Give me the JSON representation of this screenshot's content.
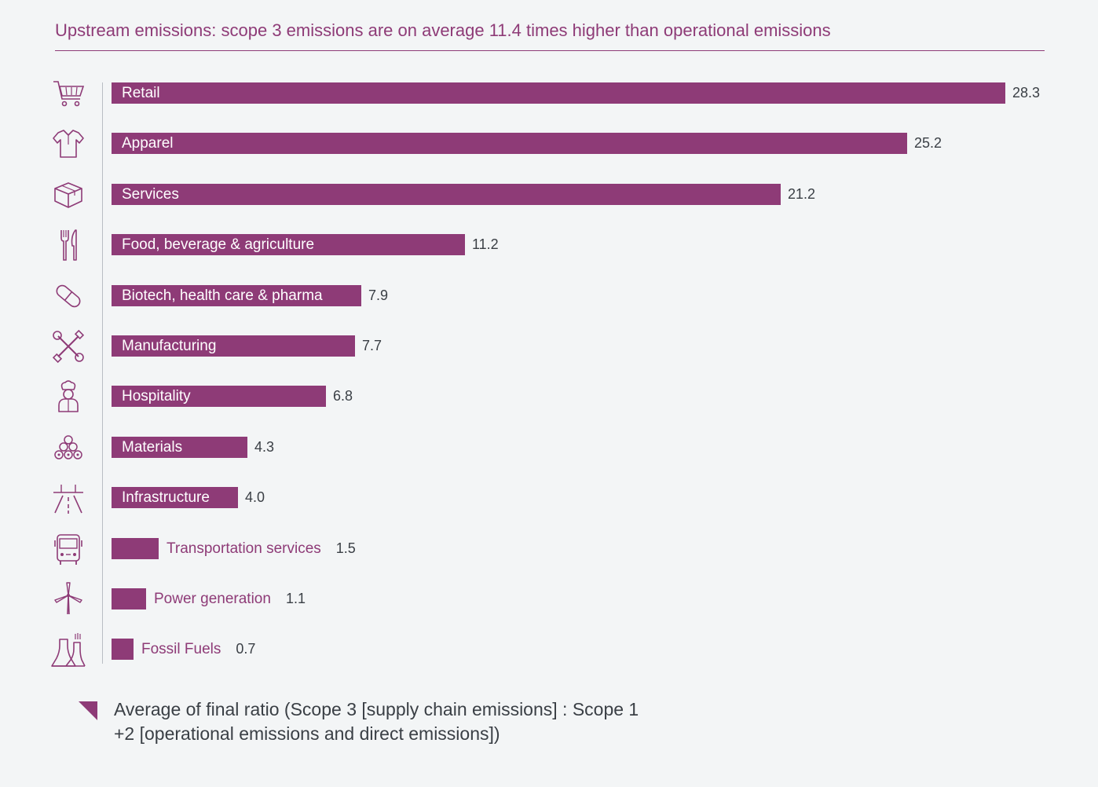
{
  "title": "Upstream emissions: scope 3 emissions are on average 11.4 times higher than operational emissions",
  "colors": {
    "bar": "#8e3b77",
    "title": "#8e3b77",
    "value_text": "#3a3f45",
    "background": "#f3f5f6"
  },
  "legend": {
    "text": "Average of final ratio (Scope 3 [supply chain emissions] : Scope 1 +2 [operational emissions and direct emissions])"
  },
  "chart_data": {
    "type": "bar",
    "orientation": "horizontal",
    "categories": [
      "Retail",
      "Apparel",
      "Services",
      "Food, beverage & agriculture",
      "Biotech, health care & pharma",
      "Manufacturing",
      "Hospitality",
      "Materials",
      "Infrastructure",
      "Transportation services",
      "Power generation",
      "Fossil Fuels"
    ],
    "values": [
      28.3,
      25.2,
      21.2,
      11.2,
      7.9,
      7.7,
      6.8,
      4.3,
      4.0,
      1.5,
      1.1,
      0.7
    ],
    "value_labels": [
      "28.3",
      "25.2",
      "21.2",
      "11.2",
      "7.9",
      "7.7",
      "6.8",
      "4.3",
      "4.0",
      "1.5",
      "1.1",
      "0.7"
    ],
    "icons": [
      "shopping-cart-icon",
      "shirt-icon",
      "box-icon",
      "fork-knife-icon",
      "pill-icon",
      "tools-icon",
      "chef-icon",
      "logs-icon",
      "road-icon",
      "bus-icon",
      "wind-turbine-icon",
      "refinery-icon"
    ],
    "title": "Upstream emissions: scope 3 emissions are on average 11.4 times higher than operational emissions",
    "xlabel": "",
    "ylabel": "",
    "xlim": [
      0,
      28.3
    ],
    "grid": false,
    "legend": "bottom-left"
  }
}
